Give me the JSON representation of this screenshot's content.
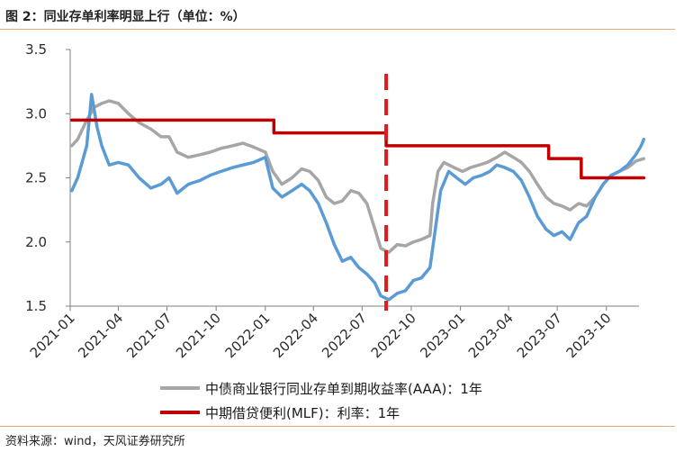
{
  "figure": {
    "title": "图 2：同业存单利率明显上行（单位：%）",
    "source": "资料来源：wind，天风证券研究所"
  },
  "colors": {
    "deposit_cert_line": "#a6a6a6",
    "mlf_line": "#c00000",
    "blue_line": "#5b9bd5",
    "marker": "#e31a1c",
    "accent_rule": "#e2aa7c"
  },
  "chart_data": {
    "type": "line",
    "xlabel": "",
    "ylabel": "",
    "ylim": [
      1.5,
      3.5
    ],
    "yticks": [
      1.5,
      2.0,
      2.5,
      3.0,
      3.5
    ],
    "ytick_labels": [
      "1.5",
      "2.0",
      "2.5",
      "3.0",
      "3.5"
    ],
    "xtick_labels": [
      "2021-01",
      "2021-04",
      "2021-07",
      "2021-10",
      "2022-01",
      "2022-04",
      "2022-07",
      "2022-10",
      "2023-01",
      "2023-04",
      "2023-07",
      "2023-10"
    ],
    "xlim": [
      "2021-01",
      "2023-12"
    ],
    "grid": false,
    "legend_position": "bottom-right",
    "annotation": {
      "type": "vertical-dashed-line",
      "x": "2022-08-15"
    },
    "series": [
      {
        "name": "中债商业银行同业存单到期收益率(AAA)：1年",
        "style": "line",
        "points": [
          [
            "2021-01-04",
            2.75
          ],
          [
            "2021-01-15",
            2.8
          ],
          [
            "2021-02-01",
            2.95
          ],
          [
            "2021-02-15",
            3.05
          ],
          [
            "2021-03-01",
            3.08
          ],
          [
            "2021-03-15",
            3.1
          ],
          [
            "2021-04-01",
            3.08
          ],
          [
            "2021-04-20",
            3.0
          ],
          [
            "2021-05-10",
            2.93
          ],
          [
            "2021-06-01",
            2.88
          ],
          [
            "2021-06-20",
            2.82
          ],
          [
            "2021-07-05",
            2.82
          ],
          [
            "2021-07-20",
            2.7
          ],
          [
            "2021-08-10",
            2.66
          ],
          [
            "2021-09-01",
            2.68
          ],
          [
            "2021-09-20",
            2.7
          ],
          [
            "2021-10-10",
            2.73
          ],
          [
            "2021-11-01",
            2.75
          ],
          [
            "2021-11-20",
            2.77
          ],
          [
            "2021-12-10",
            2.74
          ],
          [
            "2022-01-01",
            2.7
          ],
          [
            "2022-01-15",
            2.55
          ],
          [
            "2022-02-01",
            2.45
          ],
          [
            "2022-02-20",
            2.5
          ],
          [
            "2022-03-10",
            2.57
          ],
          [
            "2022-03-25",
            2.55
          ],
          [
            "2022-04-10",
            2.48
          ],
          [
            "2022-04-25",
            2.35
          ],
          [
            "2022-05-10",
            2.3
          ],
          [
            "2022-05-25",
            2.32
          ],
          [
            "2022-06-10",
            2.4
          ],
          [
            "2022-06-25",
            2.38
          ],
          [
            "2022-07-10",
            2.3
          ],
          [
            "2022-07-25",
            2.1
          ],
          [
            "2022-08-05",
            1.95
          ],
          [
            "2022-08-20",
            1.92
          ],
          [
            "2022-09-05",
            1.98
          ],
          [
            "2022-09-20",
            1.97
          ],
          [
            "2022-10-05",
            2.0
          ],
          [
            "2022-10-20",
            2.02
          ],
          [
            "2022-11-05",
            2.05
          ],
          [
            "2022-11-10",
            2.3
          ],
          [
            "2022-11-20",
            2.55
          ],
          [
            "2022-12-01",
            2.62
          ],
          [
            "2022-12-20",
            2.58
          ],
          [
            "2023-01-05",
            2.55
          ],
          [
            "2023-01-20",
            2.58
          ],
          [
            "2023-02-05",
            2.6
          ],
          [
            "2023-02-20",
            2.62
          ],
          [
            "2023-03-10",
            2.66
          ],
          [
            "2023-03-25",
            2.7
          ],
          [
            "2023-04-10",
            2.66
          ],
          [
            "2023-04-25",
            2.62
          ],
          [
            "2023-05-10",
            2.55
          ],
          [
            "2023-05-25",
            2.45
          ],
          [
            "2023-06-10",
            2.35
          ],
          [
            "2023-06-25",
            2.3
          ],
          [
            "2023-07-10",
            2.28
          ],
          [
            "2023-07-25",
            2.25
          ],
          [
            "2023-08-10",
            2.3
          ],
          [
            "2023-08-25",
            2.28
          ],
          [
            "2023-09-10",
            2.35
          ],
          [
            "2023-09-25",
            2.45
          ],
          [
            "2023-10-10",
            2.52
          ],
          [
            "2023-10-25",
            2.55
          ],
          [
            "2023-11-10",
            2.58
          ],
          [
            "2023-11-25",
            2.63
          ],
          [
            "2023-12-10",
            2.65
          ]
        ]
      },
      {
        "name": "中期借贷便利(MLF)：利率：1年",
        "style": "step",
        "points": [
          [
            "2021-01-04",
            2.95
          ],
          [
            "2022-01-17",
            2.85
          ],
          [
            "2022-08-15",
            2.75
          ],
          [
            "2023-06-15",
            2.65
          ],
          [
            "2023-08-15",
            2.5
          ],
          [
            "2023-12-10",
            2.5
          ]
        ]
      },
      {
        "name": "",
        "style": "line",
        "points": [
          [
            "2021-01-04",
            2.4
          ],
          [
            "2021-01-15",
            2.5
          ],
          [
            "2021-02-01",
            2.75
          ],
          [
            "2021-02-10",
            3.15
          ],
          [
            "2021-02-20",
            2.9
          ],
          [
            "2021-03-01",
            2.75
          ],
          [
            "2021-03-15",
            2.6
          ],
          [
            "2021-04-01",
            2.62
          ],
          [
            "2021-04-20",
            2.6
          ],
          [
            "2021-05-10",
            2.5
          ],
          [
            "2021-06-01",
            2.42
          ],
          [
            "2021-06-20",
            2.45
          ],
          [
            "2021-07-05",
            2.5
          ],
          [
            "2021-07-20",
            2.38
          ],
          [
            "2021-08-10",
            2.45
          ],
          [
            "2021-09-01",
            2.48
          ],
          [
            "2021-09-20",
            2.52
          ],
          [
            "2021-10-10",
            2.55
          ],
          [
            "2021-11-01",
            2.58
          ],
          [
            "2021-11-20",
            2.6
          ],
          [
            "2021-12-10",
            2.62
          ],
          [
            "2022-01-01",
            2.66
          ],
          [
            "2022-01-15",
            2.42
          ],
          [
            "2022-02-01",
            2.35
          ],
          [
            "2022-02-20",
            2.4
          ],
          [
            "2022-03-10",
            2.45
          ],
          [
            "2022-03-25",
            2.4
          ],
          [
            "2022-04-10",
            2.3
          ],
          [
            "2022-04-25",
            2.15
          ],
          [
            "2022-05-10",
            1.98
          ],
          [
            "2022-05-25",
            1.85
          ],
          [
            "2022-06-10",
            1.88
          ],
          [
            "2022-06-25",
            1.8
          ],
          [
            "2022-07-10",
            1.75
          ],
          [
            "2022-07-25",
            1.68
          ],
          [
            "2022-08-05",
            1.58
          ],
          [
            "2022-08-20",
            1.55
          ],
          [
            "2022-09-05",
            1.6
          ],
          [
            "2022-09-20",
            1.62
          ],
          [
            "2022-10-05",
            1.7
          ],
          [
            "2022-10-20",
            1.72
          ],
          [
            "2022-11-05",
            1.8
          ],
          [
            "2022-11-15",
            2.1
          ],
          [
            "2022-11-25",
            2.4
          ],
          [
            "2022-12-10",
            2.55
          ],
          [
            "2022-12-25",
            2.5
          ],
          [
            "2023-01-10",
            2.45
          ],
          [
            "2023-01-25",
            2.5
          ],
          [
            "2023-02-10",
            2.52
          ],
          [
            "2023-02-25",
            2.55
          ],
          [
            "2023-03-10",
            2.6
          ],
          [
            "2023-03-25",
            2.58
          ],
          [
            "2023-04-10",
            2.55
          ],
          [
            "2023-04-25",
            2.48
          ],
          [
            "2023-05-10",
            2.35
          ],
          [
            "2023-05-25",
            2.2
          ],
          [
            "2023-06-10",
            2.1
          ],
          [
            "2023-06-25",
            2.05
          ],
          [
            "2023-07-10",
            2.08
          ],
          [
            "2023-07-25",
            2.02
          ],
          [
            "2023-08-10",
            2.15
          ],
          [
            "2023-08-25",
            2.2
          ],
          [
            "2023-09-10",
            2.35
          ],
          [
            "2023-09-25",
            2.45
          ],
          [
            "2023-10-10",
            2.52
          ],
          [
            "2023-10-25",
            2.55
          ],
          [
            "2023-11-10",
            2.6
          ],
          [
            "2023-11-25",
            2.68
          ],
          [
            "2023-12-05",
            2.75
          ],
          [
            "2023-12-10",
            2.8
          ]
        ]
      }
    ]
  }
}
